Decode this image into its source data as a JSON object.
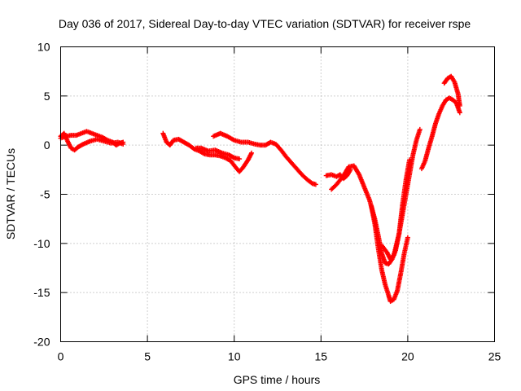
{
  "chart_data": {
    "type": "scatter",
    "title": "Day 036 of 2017, Sidereal Day-to-day VTEC variation (SDTVAR) for receiver rspe",
    "xlabel": "GPS time / hours",
    "ylabel": "SDTVAR / TECUs",
    "xlim": [
      0,
      25
    ],
    "ylim": [
      -20,
      10
    ],
    "x_ticks": [
      0,
      5,
      10,
      15,
      20,
      25
    ],
    "y_ticks": [
      10,
      5,
      0,
      -5,
      -10,
      -15,
      -20
    ],
    "x_tick_labels": [
      "0",
      "5",
      "10",
      "15",
      "20",
      "25"
    ],
    "y_tick_labels": [
      "10",
      "5",
      "0",
      "-5",
      "-10",
      "-15",
      "-20"
    ],
    "grid": true,
    "marker": "plus",
    "series": [
      {
        "color": "#ff0000",
        "segments": [
          [
            [
              0.0,
              0.9
            ],
            [
              0.2,
              1.2
            ],
            [
              0.4,
              0.4
            ],
            [
              0.6,
              -0.3
            ],
            [
              0.8,
              -0.5
            ],
            [
              1.0,
              -0.2
            ],
            [
              1.3,
              0.1
            ],
            [
              1.7,
              0.4
            ],
            [
              2.1,
              0.6
            ],
            [
              2.5,
              0.4
            ],
            [
              2.9,
              0.2
            ],
            [
              3.3,
              0.3
            ],
            [
              3.6,
              0.1
            ]
          ],
          [
            [
              0.0,
              0.7
            ],
            [
              0.3,
              0.9
            ],
            [
              0.6,
              1.0
            ],
            [
              0.9,
              1.0
            ],
            [
              1.2,
              1.2
            ],
            [
              1.5,
              1.4
            ],
            [
              1.8,
              1.2
            ],
            [
              2.1,
              1.0
            ],
            [
              2.4,
              0.8
            ],
            [
              2.7,
              0.5
            ],
            [
              3.0,
              0.3
            ],
            [
              3.2,
              0.0
            ],
            [
              3.4,
              0.2
            ],
            [
              3.6,
              0.3
            ]
          ],
          [
            [
              5.9,
              1.2
            ],
            [
              6.1,
              0.3
            ],
            [
              6.3,
              0.0
            ],
            [
              6.5,
              0.5
            ],
            [
              6.8,
              0.6
            ],
            [
              7.1,
              0.3
            ],
            [
              7.4,
              0.0
            ],
            [
              7.7,
              -0.4
            ],
            [
              8.0,
              -0.6
            ],
            [
              8.3,
              -0.9
            ],
            [
              8.6,
              -1.0
            ],
            [
              8.9,
              -1.0
            ],
            [
              9.2,
              -1.1
            ],
            [
              9.5,
              -1.3
            ],
            [
              9.8,
              -1.6
            ],
            [
              10.1,
              -2.3
            ],
            [
              10.3,
              -2.7
            ],
            [
              10.5,
              -2.3
            ],
            [
              10.8,
              -1.5
            ],
            [
              11.0,
              -0.8
            ]
          ],
          [
            [
              7.8,
              -0.3
            ],
            [
              8.1,
              -0.3
            ],
            [
              8.5,
              -0.6
            ],
            [
              8.9,
              -0.5
            ],
            [
              9.3,
              -0.8
            ],
            [
              9.7,
              -1.0
            ],
            [
              10.0,
              -1.3
            ],
            [
              10.3,
              -1.4
            ]
          ],
          [
            [
              8.8,
              0.9
            ],
            [
              9.2,
              1.2
            ],
            [
              9.6,
              0.9
            ],
            [
              10.0,
              0.5
            ],
            [
              10.4,
              0.3
            ],
            [
              10.8,
              0.3
            ],
            [
              11.2,
              0.1
            ],
            [
              11.5,
              0.0
            ],
            [
              11.8,
              0.0
            ],
            [
              12.1,
              0.3
            ],
            [
              12.4,
              0.1
            ],
            [
              12.7,
              -0.5
            ],
            [
              13.0,
              -1.2
            ],
            [
              13.3,
              -1.8
            ],
            [
              13.6,
              -2.4
            ],
            [
              13.9,
              -3.0
            ],
            [
              14.2,
              -3.5
            ],
            [
              14.5,
              -3.9
            ],
            [
              14.7,
              -4.0
            ]
          ],
          [
            [
              15.3,
              -3.1
            ],
            [
              15.6,
              -3.0
            ],
            [
              15.9,
              -3.2
            ],
            [
              16.1,
              -3.0
            ],
            [
              16.3,
              -3.4
            ],
            [
              16.5,
              -3.1
            ],
            [
              16.7,
              -2.5
            ]
          ],
          [
            [
              15.6,
              -4.5
            ],
            [
              15.9,
              -4.0
            ],
            [
              16.3,
              -3.1
            ],
            [
              16.6,
              -2.2
            ],
            [
              16.9,
              -2.1
            ],
            [
              17.2,
              -3.0
            ],
            [
              17.5,
              -4.3
            ],
            [
              17.8,
              -5.6
            ],
            [
              18.1,
              -7.5
            ],
            [
              18.3,
              -9.2
            ],
            [
              18.5,
              -11.0
            ],
            [
              18.7,
              -12.0
            ],
            [
              18.9,
              -12.1
            ],
            [
              19.1,
              -11.6
            ],
            [
              19.3,
              -10.7
            ],
            [
              19.5,
              -9.0
            ],
            [
              19.7,
              -7.0
            ],
            [
              19.9,
              -5.0
            ],
            [
              20.1,
              -3.0
            ],
            [
              20.3,
              -1.0
            ],
            [
              20.5,
              0.5
            ],
            [
              20.7,
              1.6
            ]
          ],
          [
            [
              17.9,
              -6.2
            ],
            [
              18.1,
              -8.0
            ],
            [
              18.3,
              -10.5
            ],
            [
              18.5,
              -12.7
            ],
            [
              18.7,
              -14.2
            ],
            [
              18.9,
              -15.3
            ],
            [
              19.0,
              -15.9
            ],
            [
              19.2,
              -15.7
            ],
            [
              19.4,
              -14.8
            ],
            [
              19.6,
              -13.0
            ],
            [
              19.8,
              -11.0
            ],
            [
              20.0,
              -9.4
            ]
          ],
          [
            [
              18.5,
              -10.2
            ],
            [
              18.8,
              -10.9
            ],
            [
              19.0,
              -11.6
            ],
            [
              19.2,
              -11.2
            ],
            [
              19.5,
              -9.0
            ],
            [
              19.7,
              -6.0
            ],
            [
              19.9,
              -3.5
            ],
            [
              20.1,
              -1.5
            ]
          ],
          [
            [
              20.8,
              -2.4
            ],
            [
              21.0,
              -1.6
            ],
            [
              21.2,
              -0.3
            ],
            [
              21.4,
              0.9
            ],
            [
              21.6,
              2.2
            ],
            [
              21.8,
              3.2
            ],
            [
              22.0,
              4.0
            ],
            [
              22.2,
              4.6
            ],
            [
              22.4,
              4.8
            ],
            [
              22.6,
              4.6
            ],
            [
              22.8,
              4.3
            ],
            [
              23.0,
              3.3
            ]
          ],
          [
            [
              22.1,
              6.3
            ],
            [
              22.3,
              6.8
            ],
            [
              22.5,
              7.0
            ],
            [
              22.7,
              6.4
            ],
            [
              22.9,
              5.2
            ],
            [
              23.0,
              4.0
            ]
          ]
        ]
      }
    ]
  }
}
